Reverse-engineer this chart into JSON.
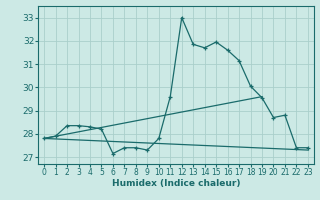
{
  "xlabel": "Humidex (Indice chaleur)",
  "xlim": [
    -0.5,
    23.5
  ],
  "ylim": [
    26.7,
    33.5
  ],
  "yticks": [
    27,
    28,
    29,
    30,
    31,
    32,
    33
  ],
  "xticks": [
    0,
    1,
    2,
    3,
    4,
    5,
    6,
    7,
    8,
    9,
    10,
    11,
    12,
    13,
    14,
    15,
    16,
    17,
    18,
    19,
    20,
    21,
    22,
    23
  ],
  "bg_color": "#cce9e5",
  "grid_color": "#aacfcb",
  "line_color": "#1a6b6b",
  "line1_x": [
    0,
    1,
    2,
    3,
    4,
    5,
    6,
    7,
    8,
    9,
    10,
    11,
    12,
    13,
    14,
    15,
    16,
    17,
    18,
    19,
    20,
    21,
    22,
    23
  ],
  "line1_y": [
    27.8,
    27.9,
    28.35,
    28.35,
    28.3,
    28.2,
    27.15,
    27.4,
    27.4,
    27.3,
    27.8,
    29.6,
    33.0,
    31.85,
    31.7,
    31.95,
    31.6,
    31.15,
    30.05,
    29.55,
    28.7,
    28.8,
    27.4,
    27.4
  ],
  "line2_x": [
    0,
    19
  ],
  "line2_y": [
    27.8,
    29.6
  ],
  "line3_x": [
    0,
    23
  ],
  "line3_y": [
    27.8,
    27.3
  ]
}
